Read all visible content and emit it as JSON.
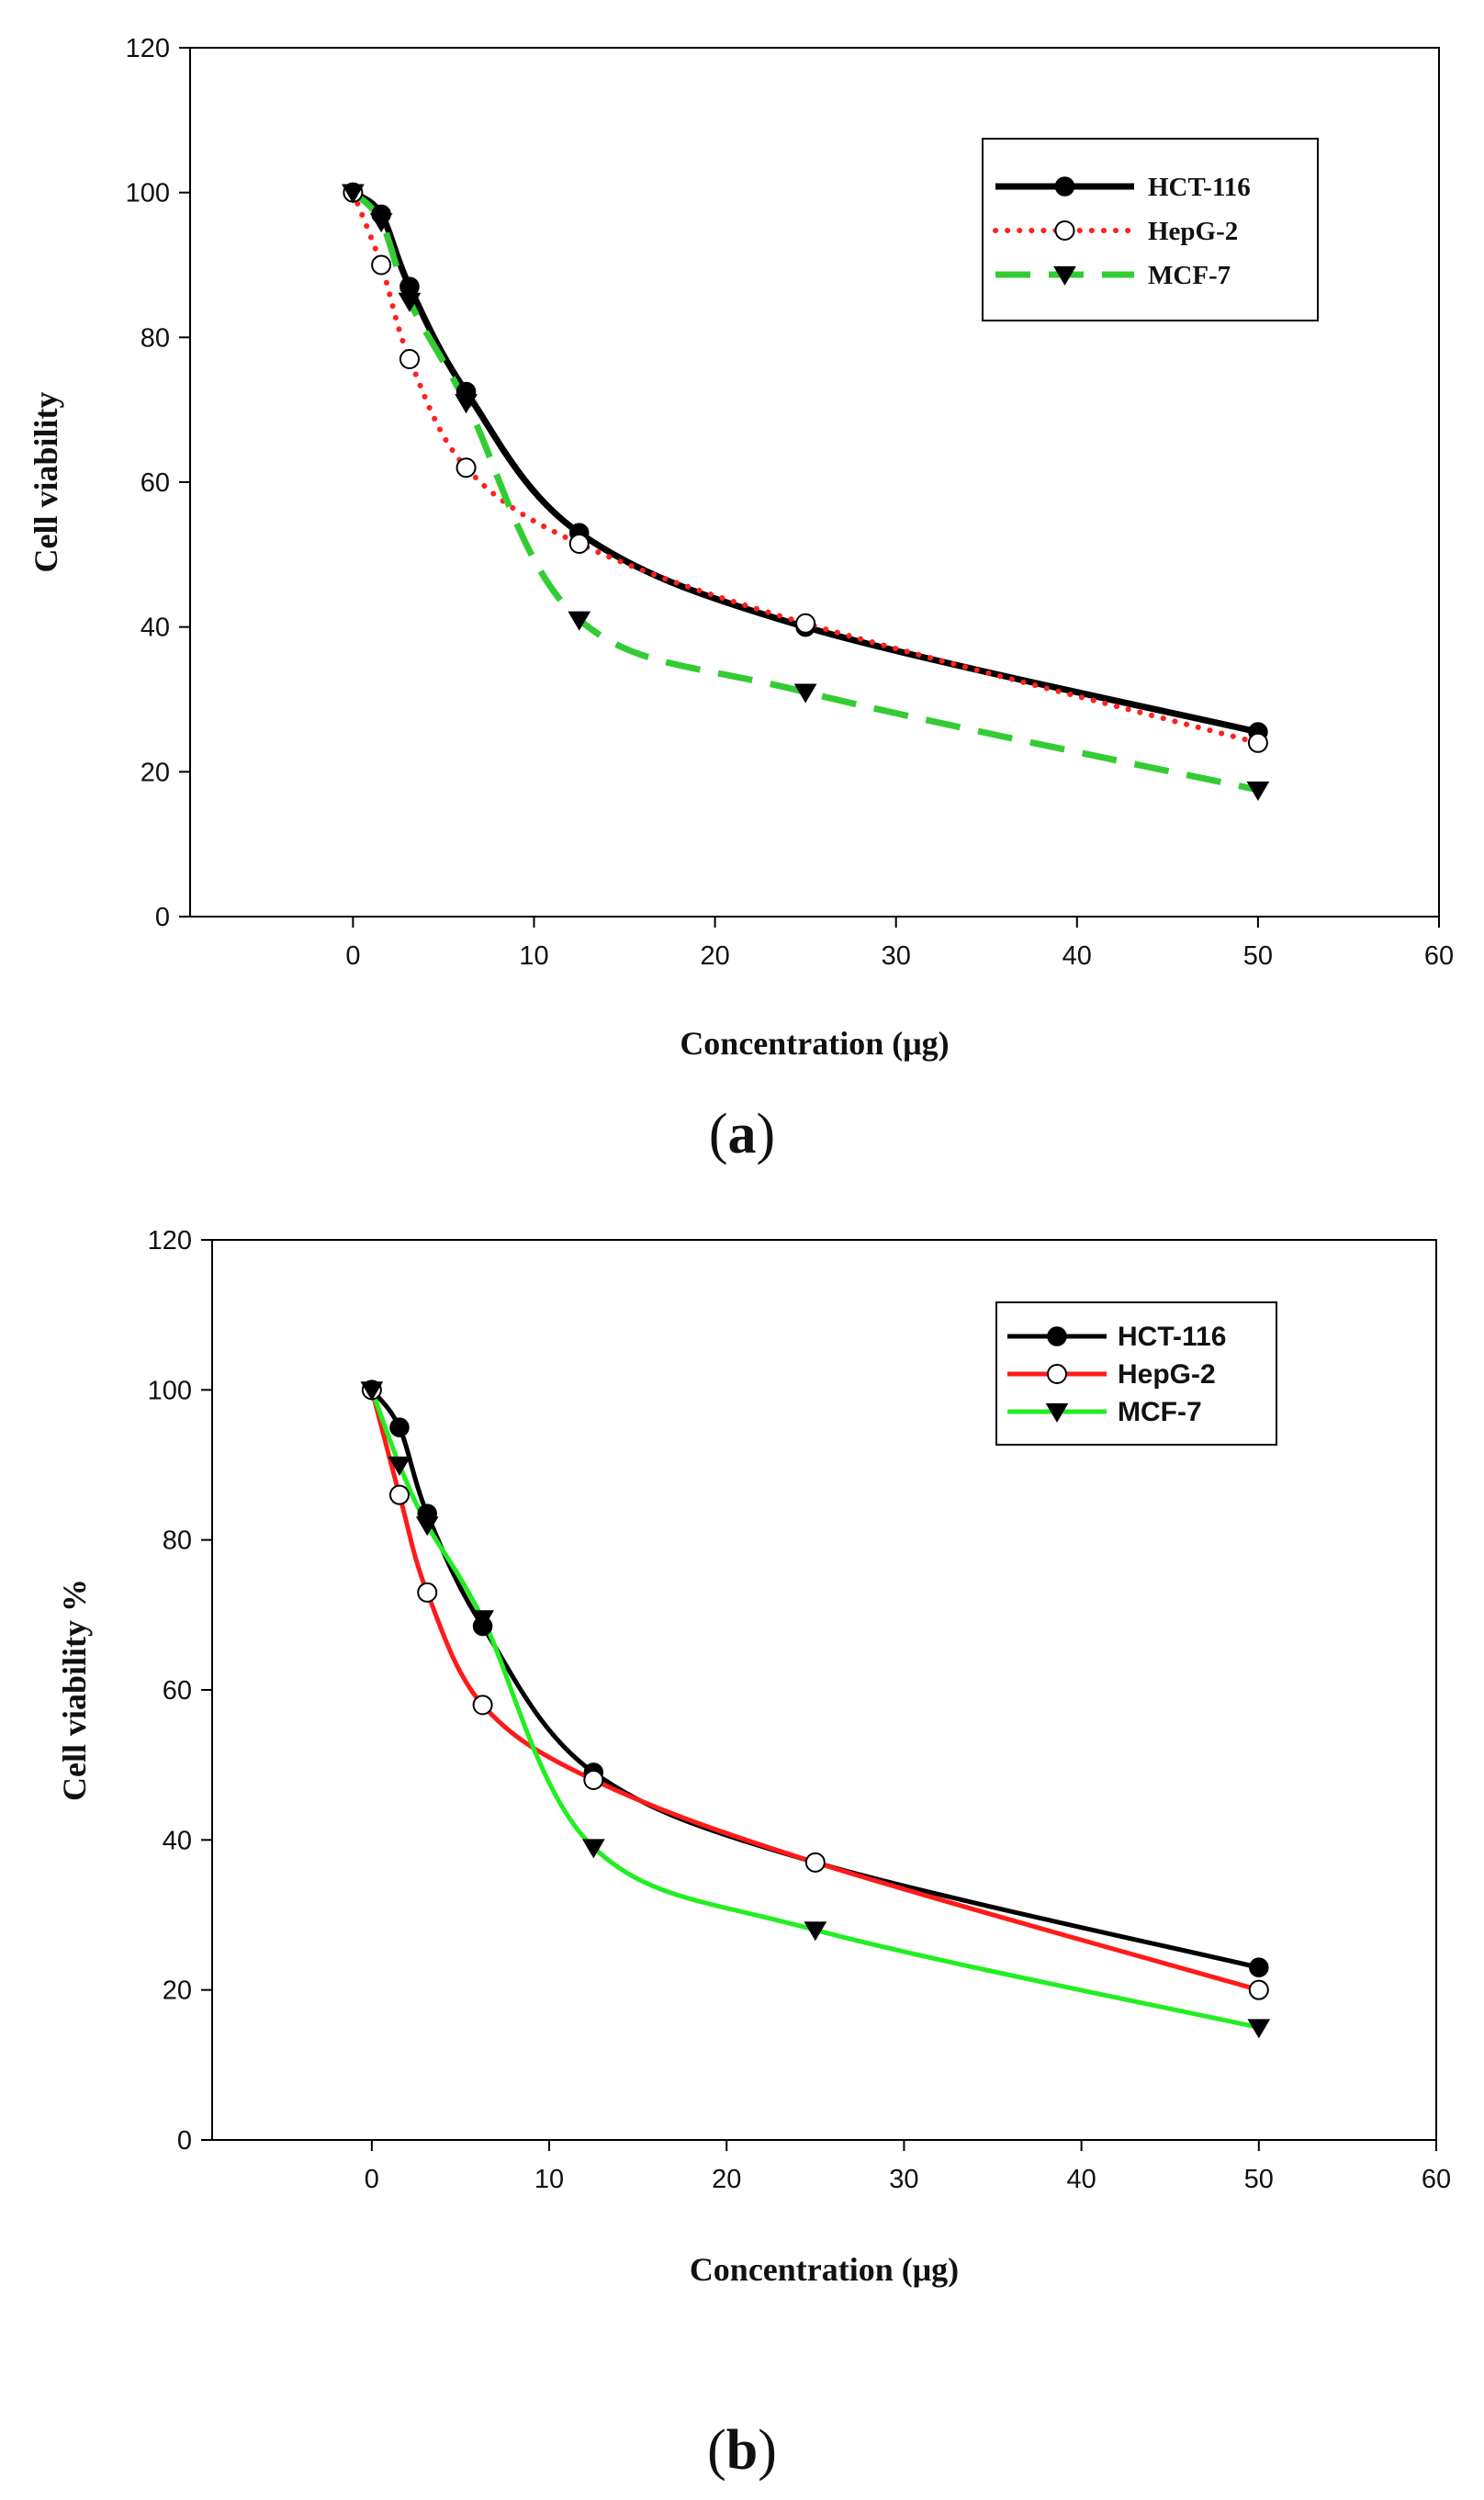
{
  "chart_data": [
    {
      "panel": "(a)",
      "panel_letter": "a",
      "type": "line",
      "title": "",
      "xlabel": "Concentration (μg)",
      "ylabel": "Cell viability",
      "xlim": [
        -9,
        60
      ],
      "ylim": [
        0,
        120
      ],
      "xticks": [
        0,
        10,
        20,
        30,
        40,
        50,
        60
      ],
      "yticks": [
        0,
        20,
        40,
        60,
        80,
        100,
        120
      ],
      "legend_position": "top-right",
      "series": [
        {
          "name": "HCT-116",
          "color": "#000000",
          "line": "solid",
          "marker": "filled-circle",
          "x": [
            0,
            1.56,
            3.125,
            6.25,
            12.5,
            25,
            50
          ],
          "y": [
            100,
            97,
            87,
            72.5,
            53,
            40,
            25.5
          ]
        },
        {
          "name": "HepG-2",
          "color": "#ff2020",
          "line": "dotted",
          "marker": "open-circle",
          "x": [
            0,
            1.56,
            3.125,
            6.25,
            12.5,
            25,
            50
          ],
          "y": [
            100,
            90,
            77,
            62,
            51.5,
            40.5,
            24
          ]
        },
        {
          "name": "MCF-7",
          "color": "#33cc33",
          "line": "dashed",
          "marker": "filled-triangle-down",
          "x": [
            0,
            1.56,
            3.125,
            6.25,
            12.5,
            25,
            50
          ],
          "y": [
            100,
            96,
            85,
            71,
            41,
            31,
            17.5
          ]
        }
      ]
    },
    {
      "panel": "(b)",
      "panel_letter": "b",
      "type": "line",
      "title": "",
      "xlabel": "Concentration (μg)",
      "ylabel": "Cell viability %",
      "xlim": [
        -9,
        60
      ],
      "ylim": [
        0,
        120
      ],
      "xticks": [
        0,
        10,
        20,
        30,
        40,
        50,
        60
      ],
      "yticks": [
        0,
        20,
        40,
        60,
        80,
        100,
        120
      ],
      "legend_position": "top-right",
      "series": [
        {
          "name": "HCT-116",
          "color": "#000000",
          "line": "solid",
          "marker": "filled-circle",
          "x": [
            0,
            1.56,
            3.125,
            6.25,
            12.5,
            25,
            50
          ],
          "y": [
            100,
            95,
            83.5,
            68.5,
            49,
            37,
            23
          ]
        },
        {
          "name": "HepG-2",
          "color": "#ff1a1a",
          "line": "solid",
          "marker": "open-circle",
          "x": [
            0,
            1.56,
            3.125,
            6.25,
            12.5,
            25,
            50
          ],
          "y": [
            100,
            86,
            73,
            58,
            48,
            37,
            20
          ]
        },
        {
          "name": "MCF-7",
          "color": "#22ee22",
          "line": "solid",
          "marker": "filled-triangle-down",
          "x": [
            0,
            1.56,
            3.125,
            6.25,
            12.5,
            25,
            50
          ],
          "y": [
            100,
            90,
            82,
            69.5,
            39,
            28,
            15
          ]
        }
      ]
    }
  ]
}
